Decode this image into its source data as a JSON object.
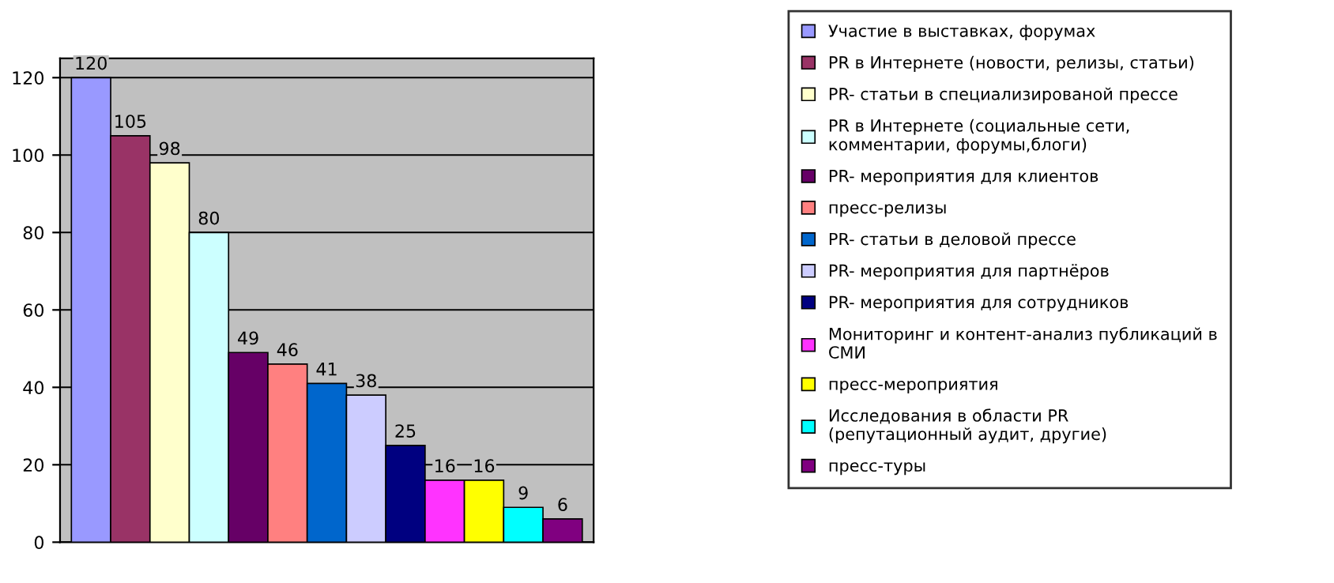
{
  "chart_data": {
    "type": "bar",
    "categories": [
      null
    ],
    "ylim": [
      0,
      125
    ],
    "yticks": [
      0,
      20,
      40,
      60,
      80,
      100,
      120
    ],
    "grid": "y",
    "legend": "right",
    "data_labels": true,
    "series": [
      {
        "name": "Участие в выставках, форумах",
        "color": "#9999ff",
        "values": [
          120
        ]
      },
      {
        "name": "PR в Интернете (новости, релизы, статьи)",
        "color": "#993366",
        "values": [
          105
        ]
      },
      {
        "name": "PR- статьи в специализированой прессе",
        "color": "#ffffcc",
        "values": [
          98
        ]
      },
      {
        "name": "PR в Интернете (социальные сети,\nкомментарии, форумы,блоги)",
        "color": "#ccffff",
        "values": [
          80
        ]
      },
      {
        "name": "PR- мероприятия для клиентов",
        "color": "#660066",
        "values": [
          49
        ]
      },
      {
        "name": "пресс-релизы",
        "color": "#ff8080",
        "values": [
          46
        ]
      },
      {
        "name": "PR- статьи в деловой прессе",
        "color": "#0066cc",
        "values": [
          41
        ]
      },
      {
        "name": "PR- мероприятия для партнёров",
        "color": "#ccccff",
        "values": [
          38
        ]
      },
      {
        "name": "PR- мероприятия для сотрудников",
        "color": "#000080",
        "values": [
          25
        ]
      },
      {
        "name": "Мониторинг и контент-анализ публикаций в\nСМИ",
        "color": "#ff33ff",
        "values": [
          16
        ]
      },
      {
        "name": "пресс-мероприятия",
        "color": "#ffff00",
        "values": [
          16
        ]
      },
      {
        "name": "Исследования в области PR \n(репутационный аудит, другие)",
        "color": "#00ffff",
        "values": [
          9
        ]
      },
      {
        "name": "пресс-туры",
        "color": "#800080",
        "values": [
          6
        ]
      }
    ]
  }
}
